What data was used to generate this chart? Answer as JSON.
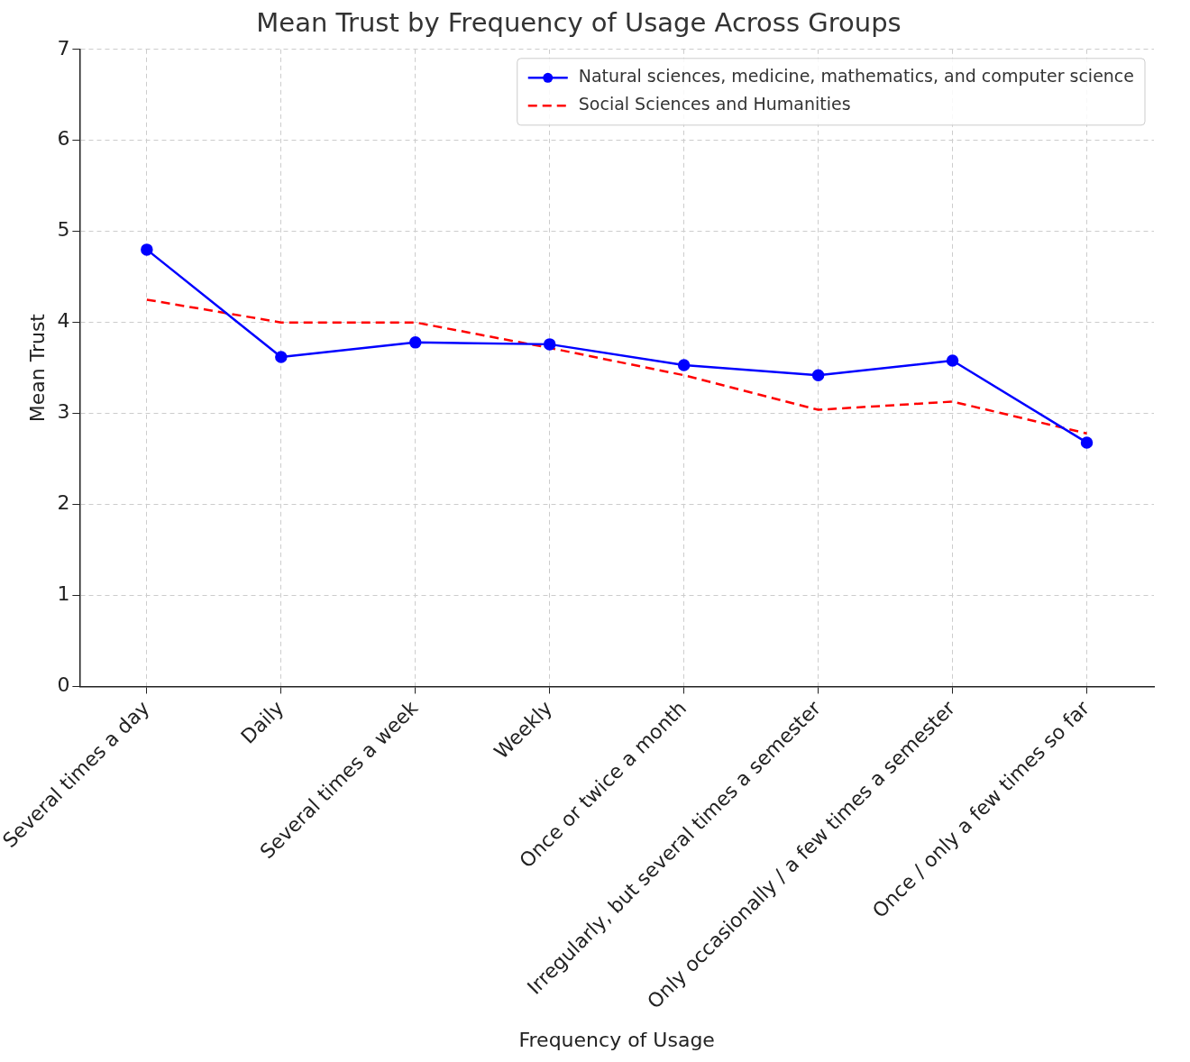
{
  "chart_data": {
    "type": "line",
    "title": "Mean Trust by Frequency of Usage Across Groups",
    "xlabel": "Frequency of Usage",
    "ylabel": "Mean Trust",
    "categories": [
      "Several times a day",
      "Daily",
      "Several times a week",
      "Weekly",
      "Once or twice a month",
      "Irregularly, but several times a semester",
      "Only occasionally / a few times a semester",
      "Once / only a few times so far"
    ],
    "series": [
      {
        "name": "Natural sciences, medicine, mathematics, and computer science",
        "color": "#0000ff",
        "marker": "circle",
        "line_style": "solid",
        "values": [
          4.8,
          3.62,
          3.78,
          3.76,
          3.53,
          3.42,
          3.58,
          2.68
        ]
      },
      {
        "name": "Social Sciences and Humanities",
        "color": "#ff0000",
        "marker": "none",
        "line_style": "dashed",
        "values": [
          4.25,
          4.0,
          4.0,
          3.72,
          3.42,
          3.04,
          3.13,
          2.78
        ]
      }
    ],
    "ylim": [
      0,
      7
    ],
    "yticks": [
      0,
      1,
      2,
      3,
      4,
      5,
      6,
      7
    ],
    "grid": true,
    "legend": "top right"
  }
}
